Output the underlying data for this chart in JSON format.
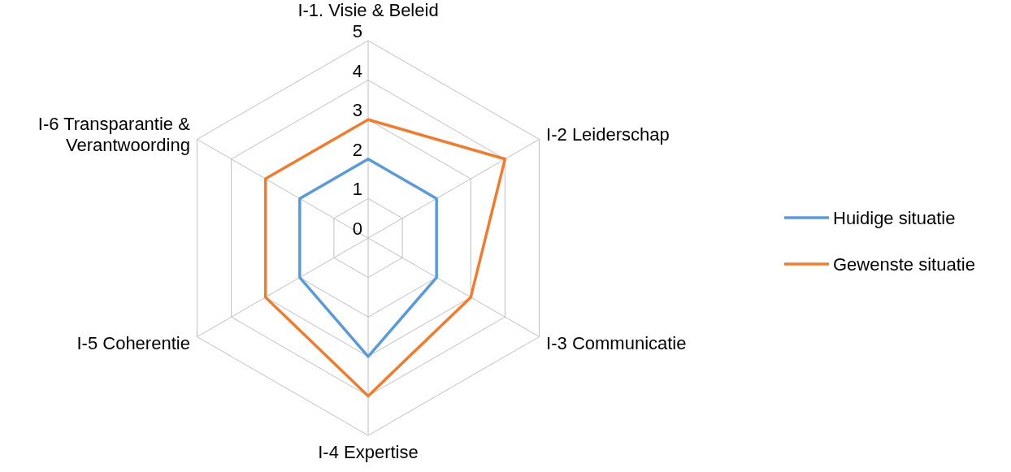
{
  "chart_data": {
    "type": "radar",
    "categories": [
      "I-1. Visie & Beleid",
      "I-2 Leiderschap",
      "I-3 Communicatie",
      "I-4 Expertise",
      "I-5 Coherentie",
      "I-6 Transparantie & Verantwoording"
    ],
    "series": [
      {
        "name": "Huidige situatie",
        "color": "#5b9bd5",
        "values": [
          2,
          2,
          2,
          3,
          2,
          2
        ]
      },
      {
        "name": "Gewenste situatie",
        "color": "#ed7d31",
        "values": [
          3,
          4,
          3,
          4,
          3,
          3
        ]
      }
    ],
    "ylim": [
      0,
      5
    ],
    "yticks": [
      0,
      1,
      2,
      3,
      4,
      5
    ],
    "grid": true,
    "legend": "right"
  }
}
